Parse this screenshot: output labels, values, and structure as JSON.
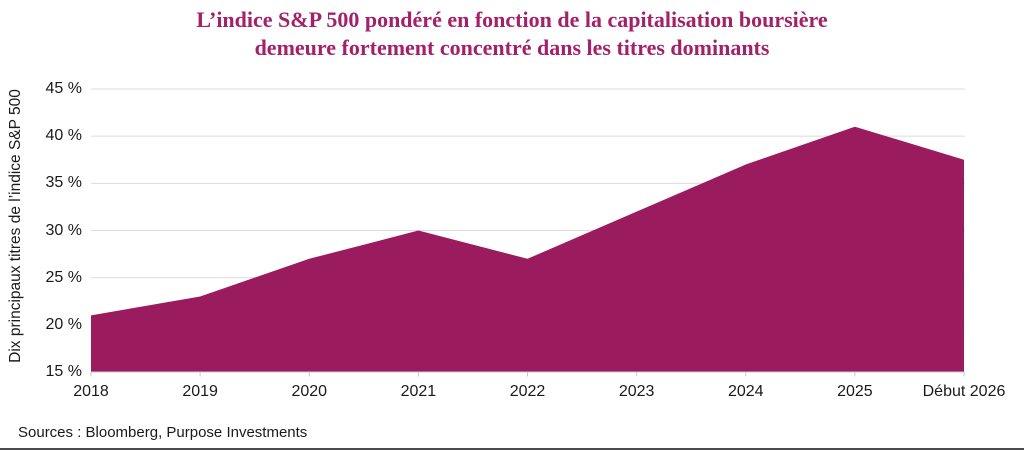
{
  "title": {
    "line1": "L’indice S&P 500 pondéré en fonction de la capitalisation boursière",
    "line2": "demeure fortement concentré dans les titres dominants"
  },
  "source": "Sources : Bloomberg, Purpose Investments",
  "colors": {
    "title": "#A32169",
    "area_fill": "#9A1C5F",
    "gridline": "#DBDBDB",
    "axis_line": "#C9C9C9",
    "text": "#1a1a1a",
    "bottom_border": "#4b4b4d"
  },
  "chart_data": {
    "type": "area",
    "title": "L’indice S&P 500 pondéré en fonction de la capitalisation boursière demeure fortement concentré dans les titres dominants",
    "categories": [
      "2018",
      "2019",
      "2020",
      "2021",
      "2022",
      "2023",
      "2024",
      "2025",
      "Début 2026"
    ],
    "values": [
      21,
      23,
      27,
      30,
      27,
      32,
      37,
      41,
      37.5
    ],
    "xlabel": "",
    "ylabel": "Dix principaux titres de l’indice S&P 500",
    "ylim": [
      15,
      45
    ],
    "ytick_step": 5,
    "ytick_labels": [
      "45 %",
      "40 %",
      "35 %",
      "30 %",
      "25 %",
      "20 %",
      "15 %"
    ],
    "grid": "horizontal-only",
    "legend": "none",
    "fill_color": "#9A1C5F"
  }
}
